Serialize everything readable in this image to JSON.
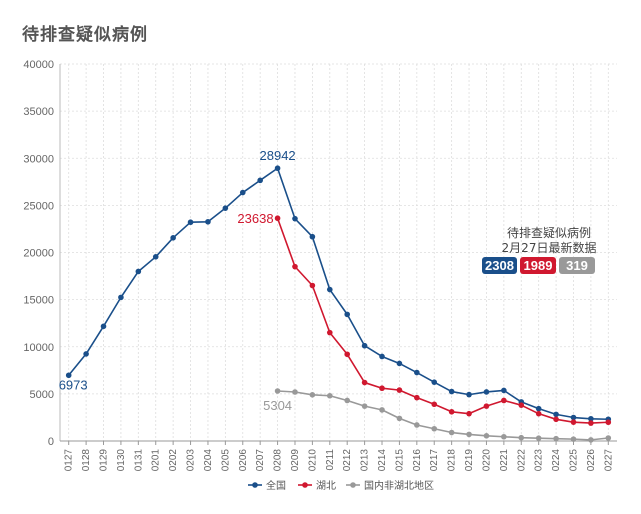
{
  "page": {
    "title": "待排查疑似病例"
  },
  "colors": {
    "national": "#1a4f8a",
    "hubei": "#d0182f",
    "outside": "#999999",
    "grid": "#dddddd"
  },
  "note": {
    "title": "待排查疑似病例",
    "subtitle": "2月27日最新数据",
    "badges": [
      {
        "series": "全国",
        "value": "2308",
        "color": "#1a4f8a"
      },
      {
        "series": "湖北",
        "value": "1989",
        "color": "#d0182f"
      },
      {
        "series": "国内非湖北地区",
        "value": "319",
        "color": "#999999"
      }
    ]
  },
  "annotations": [
    {
      "series": "全国",
      "category": "0127",
      "text": "6973",
      "color": "#1a4f8a"
    },
    {
      "series": "全国",
      "category": "0208",
      "text": "28942",
      "color": "#1a4f8a"
    },
    {
      "series": "湖北",
      "category": "0208",
      "text": "23638",
      "color": "#d0182f"
    },
    {
      "series": "国内非湖北地区",
      "category": "0208",
      "text": "5304",
      "color": "#999999"
    }
  ],
  "chart_data": {
    "type": "line",
    "title": "待排查疑似病例",
    "xlabel": "",
    "ylabel": "",
    "ylim": [
      0,
      40000
    ],
    "yticks": [
      0,
      5000,
      10000,
      15000,
      20000,
      25000,
      30000,
      35000,
      40000
    ],
    "grid": true,
    "legend_position": "bottom",
    "categories": [
      "0127",
      "0128",
      "0129",
      "0130",
      "0131",
      "0201",
      "0202",
      "0203",
      "0204",
      "0205",
      "0206",
      "0207",
      "0208",
      "0209",
      "0210",
      "0211",
      "0212",
      "0213",
      "0214",
      "0215",
      "0216",
      "0217",
      "0218",
      "0219",
      "0220",
      "0221",
      "0222",
      "0223",
      "0224",
      "0225",
      "0226",
      "0227"
    ],
    "series": [
      {
        "name": "全国",
        "color": "#1a4f8a",
        "values": [
          6973,
          9239,
          12167,
          15238,
          17988,
          19544,
          21558,
          23214,
          23260,
          24702,
          26359,
          27657,
          28942,
          23589,
          21675,
          16067,
          13435,
          10109,
          8969,
          8228,
          7264,
          6242,
          5248,
          4922,
          5206,
          5365,
          4148,
          3434,
          2824,
          2491,
          2358,
          2308
        ]
      },
      {
        "name": "湖北",
        "color": "#d0182f",
        "values": [
          null,
          null,
          null,
          null,
          null,
          null,
          null,
          null,
          null,
          null,
          null,
          null,
          23638,
          18500,
          16500,
          11500,
          9200,
          6200,
          5600,
          5400,
          4600,
          3900,
          3100,
          2900,
          3700,
          4300,
          3800,
          2900,
          2300,
          2000,
          1900,
          1989
        ]
      },
      {
        "name": "国内非湖北地区",
        "color": "#999999",
        "values": [
          null,
          null,
          null,
          null,
          null,
          null,
          null,
          null,
          null,
          null,
          null,
          null,
          5304,
          5200,
          4900,
          4800,
          4300,
          3700,
          3300,
          2400,
          1700,
          1300,
          900,
          700,
          550,
          450,
          350,
          300,
          250,
          200,
          120,
          319
        ]
      }
    ]
  }
}
